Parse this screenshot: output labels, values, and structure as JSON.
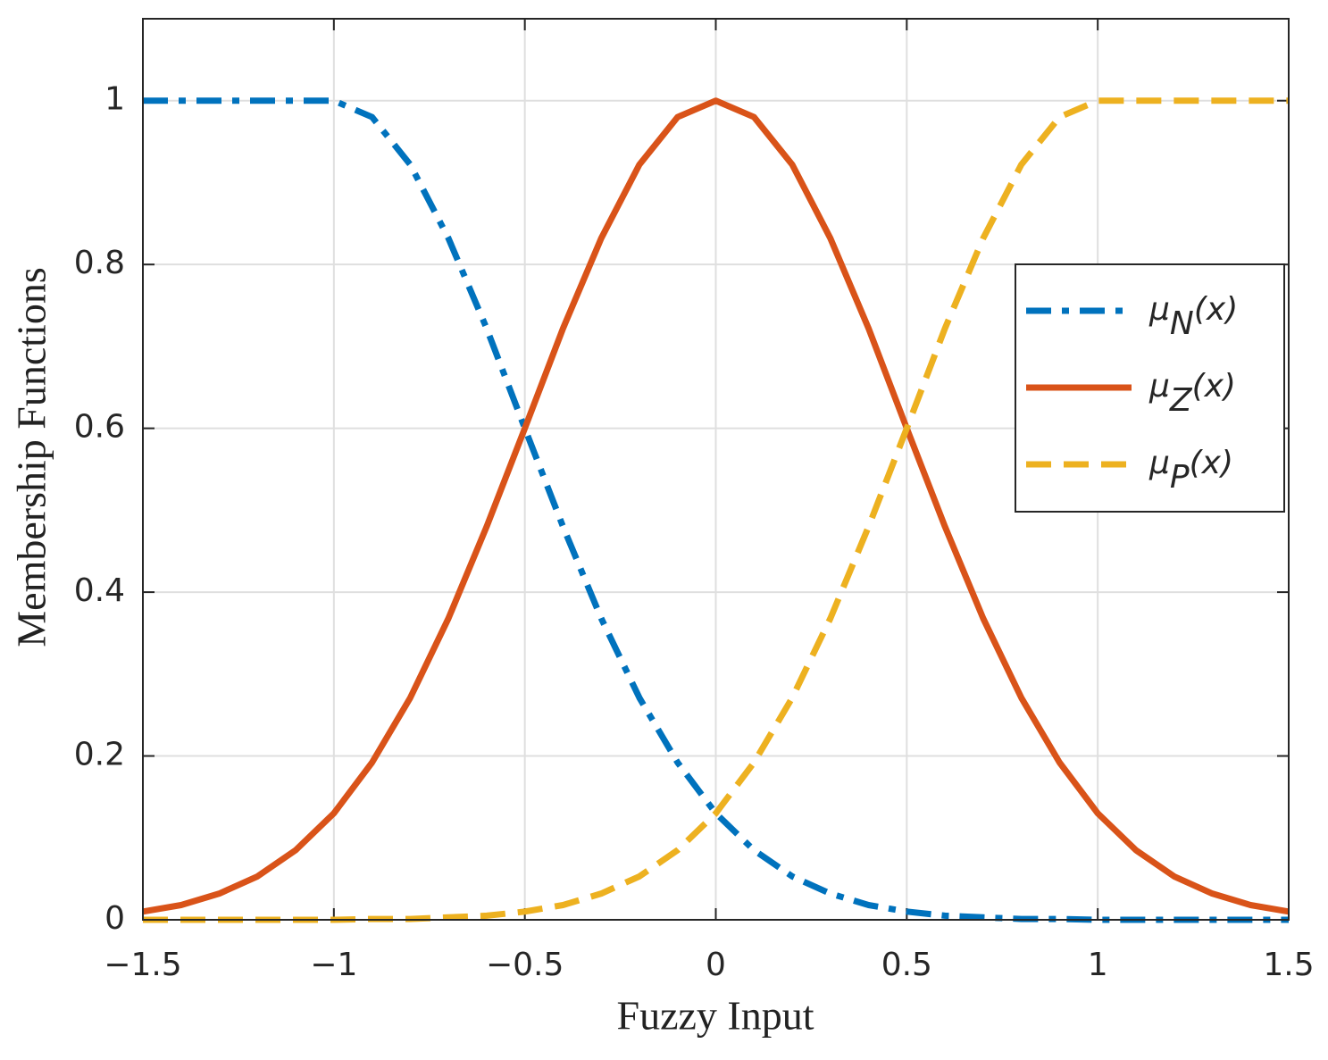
{
  "chart_data": {
    "type": "line",
    "xlabel": "Fuzzy Input",
    "ylabel": "Membership Functions",
    "x": [
      -1.5,
      -1.4,
      -1.3,
      -1.2,
      -1.1,
      -1.0,
      -0.9,
      -0.8,
      -0.7,
      -0.6,
      -0.5,
      -0.4,
      -0.3,
      -0.2,
      -0.1,
      0,
      0.1,
      0.2,
      0.3,
      0.4,
      0.5,
      0.6,
      0.7,
      0.8,
      0.9,
      1.0,
      1.1,
      1.2,
      1.3,
      1.4,
      1.5
    ],
    "series": [
      {
        "name": "μN(x)",
        "color": "#0072bd",
        "style": "dash-dot",
        "values": [
          1,
          1,
          1,
          1,
          1,
          1,
          0.98,
          0.922,
          0.832,
          0.722,
          0.6,
          0.48,
          0.368,
          0.271,
          0.192,
          0.13,
          0.085,
          0.053,
          0.032,
          0.018,
          0.01,
          0.005,
          0.003,
          0.001,
          0.001,
          0,
          0,
          0,
          0,
          0,
          0
        ]
      },
      {
        "name": "μZ(x)",
        "color": "#d95319",
        "style": "solid",
        "values": [
          0.01,
          0.018,
          0.032,
          0.053,
          0.085,
          0.13,
          0.192,
          0.271,
          0.368,
          0.48,
          0.6,
          0.722,
          0.832,
          0.922,
          0.98,
          1,
          0.98,
          0.922,
          0.832,
          0.722,
          0.6,
          0.48,
          0.368,
          0.271,
          0.192,
          0.13,
          0.085,
          0.053,
          0.032,
          0.018,
          0.01
        ]
      },
      {
        "name": "μP(x)",
        "color": "#edb120",
        "style": "dashed",
        "values": [
          0,
          0,
          0,
          0,
          0,
          0,
          0.001,
          0.001,
          0.003,
          0.005,
          0.01,
          0.018,
          0.032,
          0.053,
          0.085,
          0.13,
          0.192,
          0.271,
          0.368,
          0.48,
          0.6,
          0.722,
          0.832,
          0.922,
          0.98,
          1,
          1,
          1,
          1,
          1,
          1
        ]
      }
    ],
    "xlim": [
      -1.5,
      1.5
    ],
    "xticks": [
      {
        "value": -1.5,
        "label": "−1.5"
      },
      {
        "value": -1,
        "label": "−1"
      },
      {
        "value": -0.5,
        "label": "−0.5"
      },
      0,
      0.5,
      1,
      1.5
    ],
    "ylim": [
      0,
      1.1
    ],
    "yticks": [
      0,
      0.2,
      0.4,
      0.6,
      0.8,
      1
    ],
    "grid": true,
    "legend": "east"
  }
}
